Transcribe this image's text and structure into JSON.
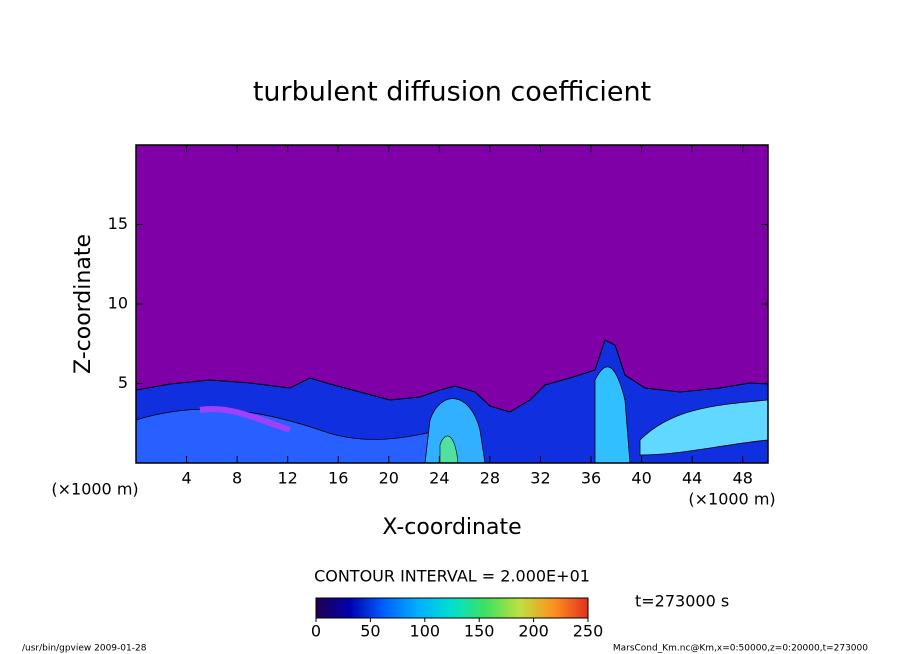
{
  "chart_data": {
    "type": "contour",
    "title": "turbulent diffusion coefficient",
    "x_label": "X-coordinate",
    "y_label": "Z-coordinate",
    "x_unit": "(×1000 m)",
    "x_unit_right": "(×1000 m)",
    "xlim": [
      0,
      50
    ],
    "xticks": [
      4,
      8,
      12,
      16,
      20,
      24,
      28,
      32,
      36,
      40,
      44,
      48
    ],
    "ylim": [
      0,
      20
    ],
    "yticks": [
      5,
      10,
      15
    ],
    "field_color": "#7f00a6",
    "contour_interval": "CONTOUR INTERVAL = 2.000E+01",
    "time_label": "t=273000 s",
    "colorbar": {
      "lim": [
        0,
        250
      ],
      "ticks": [
        0,
        50,
        100,
        150,
        200,
        250
      ],
      "colors": [
        "#200050",
        "#0000b0",
        "#0060ff",
        "#00b0ff",
        "#00e0d0",
        "#40e060",
        "#c0e040",
        "#ff9020",
        "#e03020"
      ]
    },
    "footer_left": "/usr/bin/gpview  2009-01-28",
    "footer_right": "MarsCond_Km.nc@Km,x=0:50000,z=0:20000,t=273000"
  }
}
